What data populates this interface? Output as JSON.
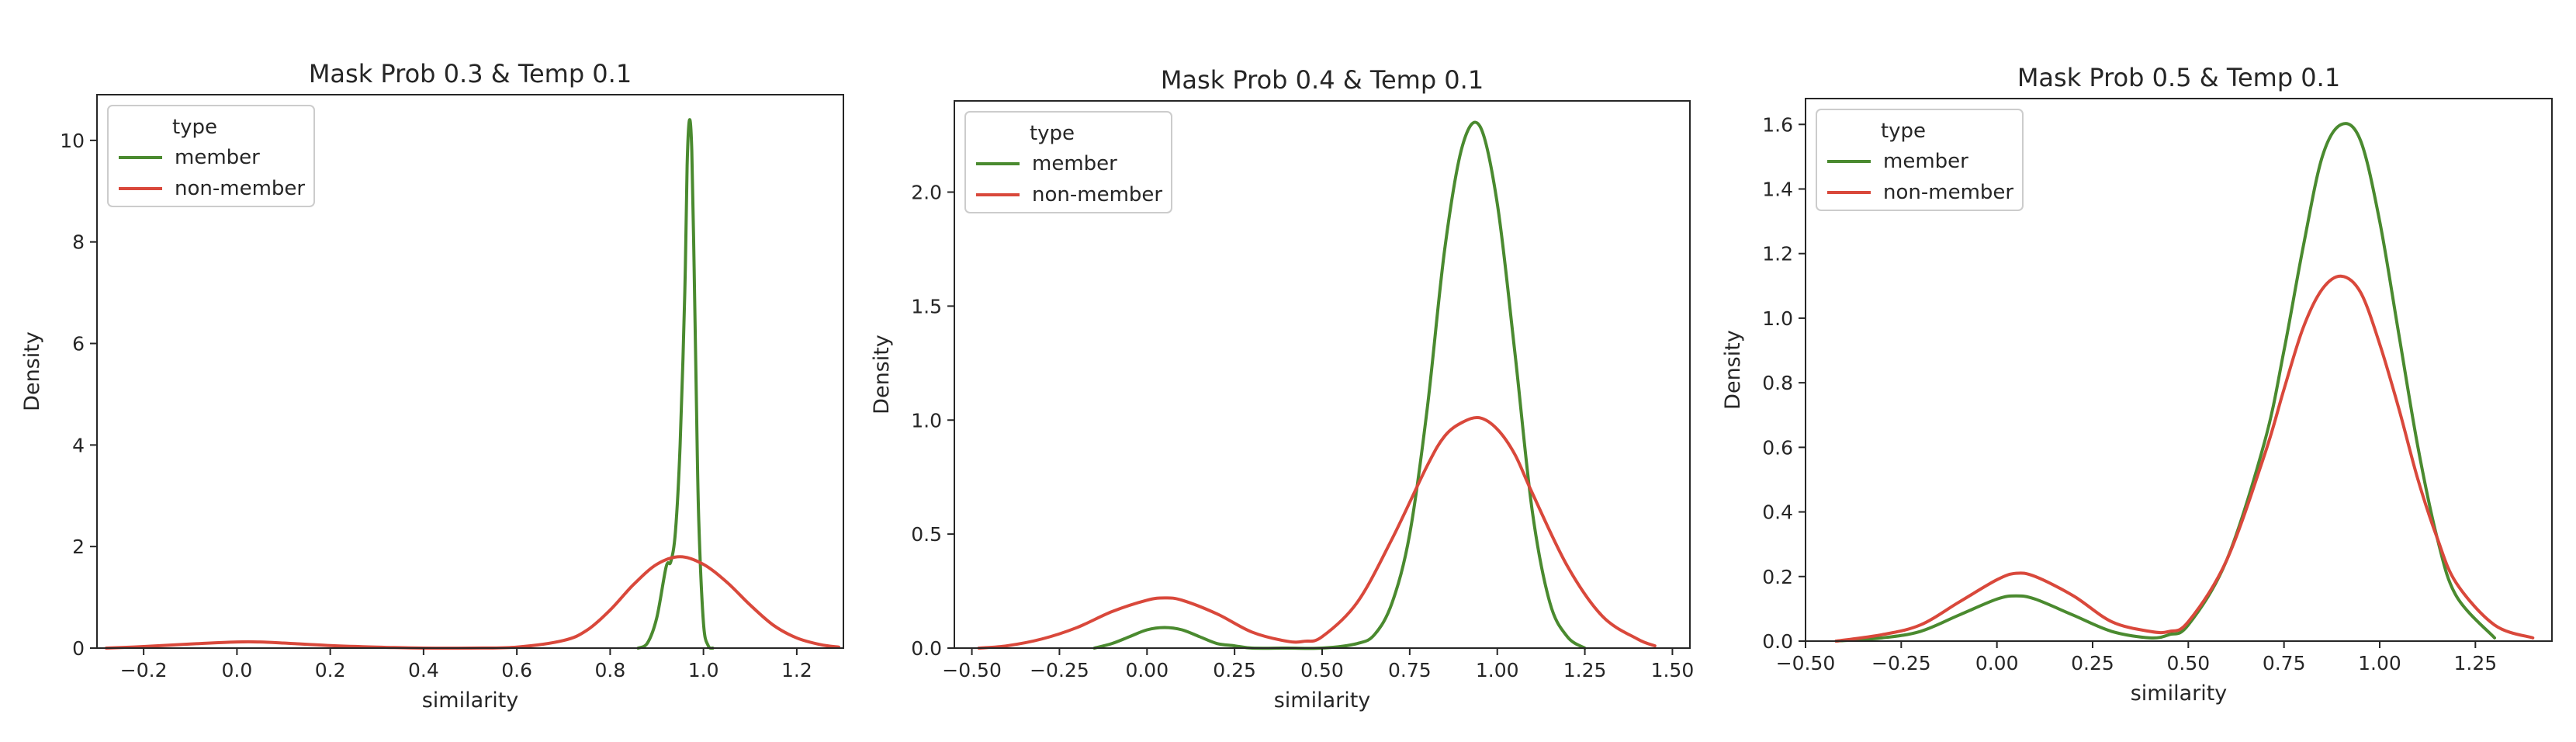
{
  "figure": {
    "panels": [
      "panel-1",
      "panel-2",
      "panel-3"
    ]
  },
  "chart_data": [
    {
      "type": "line",
      "title": "Mask Prob 0.3 & Temp 0.1",
      "xlabel": "similarity",
      "ylabel": "Density",
      "xlim": [
        -0.3,
        1.3
      ],
      "ylim": [
        0,
        10.9
      ],
      "xticks": [
        -0.2,
        0.0,
        0.2,
        0.4,
        0.6,
        0.8,
        1.0,
        1.2
      ],
      "xtick_labels": [
        "−0.2",
        "0.0",
        "0.2",
        "0.4",
        "0.6",
        "0.8",
        "1.0",
        "1.2"
      ],
      "yticks": [
        0,
        2,
        4,
        6,
        8,
        10
      ],
      "ytick_labels": [
        "0",
        "2",
        "4",
        "6",
        "8",
        "10"
      ],
      "legend": {
        "title": "type",
        "placement": "top-left"
      },
      "grid": false,
      "series": [
        {
          "name": "member",
          "color": "#4a8a2f",
          "x": [
            0.86,
            0.88,
            0.9,
            0.92,
            0.93,
            0.94,
            0.95,
            0.96,
            0.965,
            0.97,
            0.975,
            0.98,
            0.985,
            0.99,
            1.0,
            1.01,
            1.02
          ],
          "values": [
            0.0,
            0.1,
            0.6,
            1.6,
            1.7,
            2.3,
            4.0,
            7.0,
            9.5,
            10.4,
            9.8,
            7.5,
            4.8,
            2.5,
            0.5,
            0.05,
            0.0
          ]
        },
        {
          "name": "non-member",
          "color": "#d9483b",
          "x": [
            -0.28,
            -0.2,
            -0.1,
            0.0,
            0.05,
            0.1,
            0.2,
            0.3,
            0.4,
            0.5,
            0.6,
            0.7,
            0.75,
            0.8,
            0.85,
            0.9,
            0.95,
            1.0,
            1.05,
            1.1,
            1.15,
            1.2,
            1.25,
            1.29
          ],
          "values": [
            0.0,
            0.03,
            0.08,
            0.12,
            0.12,
            0.1,
            0.05,
            0.02,
            0.0,
            0.0,
            0.02,
            0.15,
            0.35,
            0.75,
            1.25,
            1.65,
            1.8,
            1.65,
            1.3,
            0.85,
            0.45,
            0.2,
            0.07,
            0.02
          ]
        }
      ]
    },
    {
      "type": "line",
      "title": "Mask Prob 0.4 & Temp 0.1",
      "xlabel": "similarity",
      "ylabel": "Density",
      "xlim": [
        -0.55,
        1.55
      ],
      "ylim": [
        0,
        2.4
      ],
      "xticks": [
        -0.5,
        -0.25,
        0.0,
        0.25,
        0.5,
        0.75,
        1.0,
        1.25,
        1.5
      ],
      "xtick_labels": [
        "−0.50",
        "−0.25",
        "0.00",
        "0.25",
        "0.50",
        "0.75",
        "1.00",
        "1.25",
        "1.50"
      ],
      "yticks": [
        0.0,
        0.5,
        1.0,
        1.5,
        2.0
      ],
      "ytick_labels": [
        "0.0",
        "0.5",
        "1.0",
        "1.5",
        "2.0"
      ],
      "legend": {
        "title": "type",
        "placement": "top-left"
      },
      "grid": false,
      "series": [
        {
          "name": "member",
          "color": "#4a8a2f",
          "x": [
            -0.15,
            -0.1,
            -0.05,
            0.0,
            0.05,
            0.1,
            0.15,
            0.2,
            0.25,
            0.3,
            0.4,
            0.5,
            0.6,
            0.65,
            0.7,
            0.75,
            0.8,
            0.85,
            0.9,
            0.95,
            1.0,
            1.05,
            1.1,
            1.15,
            1.2,
            1.25
          ],
          "values": [
            0.0,
            0.02,
            0.05,
            0.08,
            0.09,
            0.08,
            0.05,
            0.02,
            0.01,
            0.0,
            0.0,
            0.0,
            0.02,
            0.06,
            0.2,
            0.5,
            1.05,
            1.75,
            2.2,
            2.29,
            1.95,
            1.3,
            0.6,
            0.2,
            0.05,
            0.0
          ]
        },
        {
          "name": "non-member",
          "color": "#d9483b",
          "x": [
            -0.48,
            -0.4,
            -0.3,
            -0.2,
            -0.1,
            0.0,
            0.05,
            0.1,
            0.2,
            0.3,
            0.4,
            0.45,
            0.5,
            0.6,
            0.7,
            0.8,
            0.85,
            0.9,
            0.95,
            1.0,
            1.05,
            1.1,
            1.2,
            1.3,
            1.4,
            1.45
          ],
          "values": [
            0.0,
            0.01,
            0.04,
            0.09,
            0.16,
            0.21,
            0.22,
            0.21,
            0.15,
            0.07,
            0.03,
            0.03,
            0.05,
            0.2,
            0.48,
            0.8,
            0.93,
            0.99,
            1.01,
            0.96,
            0.85,
            0.68,
            0.36,
            0.14,
            0.04,
            0.01
          ]
        }
      ]
    },
    {
      "type": "line",
      "title": "Mask Prob 0.5 & Temp 0.1",
      "xlabel": "similarity",
      "ylabel": "Density",
      "xlim": [
        -0.5,
        1.45
      ],
      "ylim": [
        0,
        1.68
      ],
      "xticks": [
        -0.5,
        -0.25,
        0.0,
        0.25,
        0.5,
        0.75,
        1.0,
        1.25
      ],
      "xtick_labels": [
        "−0.50",
        "−0.25",
        "0.00",
        "0.25",
        "0.50",
        "0.75",
        "1.00",
        "1.25"
      ],
      "yticks": [
        0.0,
        0.2,
        0.4,
        0.6,
        0.8,
        1.0,
        1.2,
        1.4,
        1.6
      ],
      "ytick_labels": [
        "0.0",
        "0.2",
        "0.4",
        "0.6",
        "0.8",
        "1.0",
        "1.2",
        "1.4",
        "1.6"
      ],
      "legend": {
        "title": "type",
        "placement": "top-left"
      },
      "grid": false,
      "series": [
        {
          "name": "member",
          "color": "#4a8a2f",
          "x": [
            -0.42,
            -0.3,
            -0.2,
            -0.1,
            0.0,
            0.05,
            0.1,
            0.2,
            0.3,
            0.4,
            0.45,
            0.5,
            0.6,
            0.7,
            0.75,
            0.8,
            0.85,
            0.9,
            0.95,
            1.0,
            1.05,
            1.1,
            1.15,
            1.2,
            1.3
          ],
          "values": [
            0.0,
            0.01,
            0.03,
            0.08,
            0.13,
            0.14,
            0.13,
            0.08,
            0.03,
            0.01,
            0.02,
            0.05,
            0.25,
            0.62,
            0.9,
            1.22,
            1.5,
            1.6,
            1.55,
            1.3,
            0.95,
            0.6,
            0.32,
            0.14,
            0.01
          ]
        },
        {
          "name": "non-member",
          "color": "#d9483b",
          "x": [
            -0.42,
            -0.3,
            -0.2,
            -0.1,
            0.0,
            0.05,
            0.1,
            0.2,
            0.3,
            0.4,
            0.45,
            0.5,
            0.6,
            0.7,
            0.75,
            0.8,
            0.85,
            0.9,
            0.95,
            1.0,
            1.05,
            1.1,
            1.15,
            1.2,
            1.3,
            1.4
          ],
          "values": [
            0.0,
            0.02,
            0.05,
            0.12,
            0.19,
            0.21,
            0.2,
            0.14,
            0.06,
            0.03,
            0.03,
            0.06,
            0.25,
            0.58,
            0.78,
            0.97,
            1.09,
            1.13,
            1.08,
            0.92,
            0.72,
            0.5,
            0.32,
            0.18,
            0.05,
            0.01
          ]
        }
      ]
    }
  ]
}
